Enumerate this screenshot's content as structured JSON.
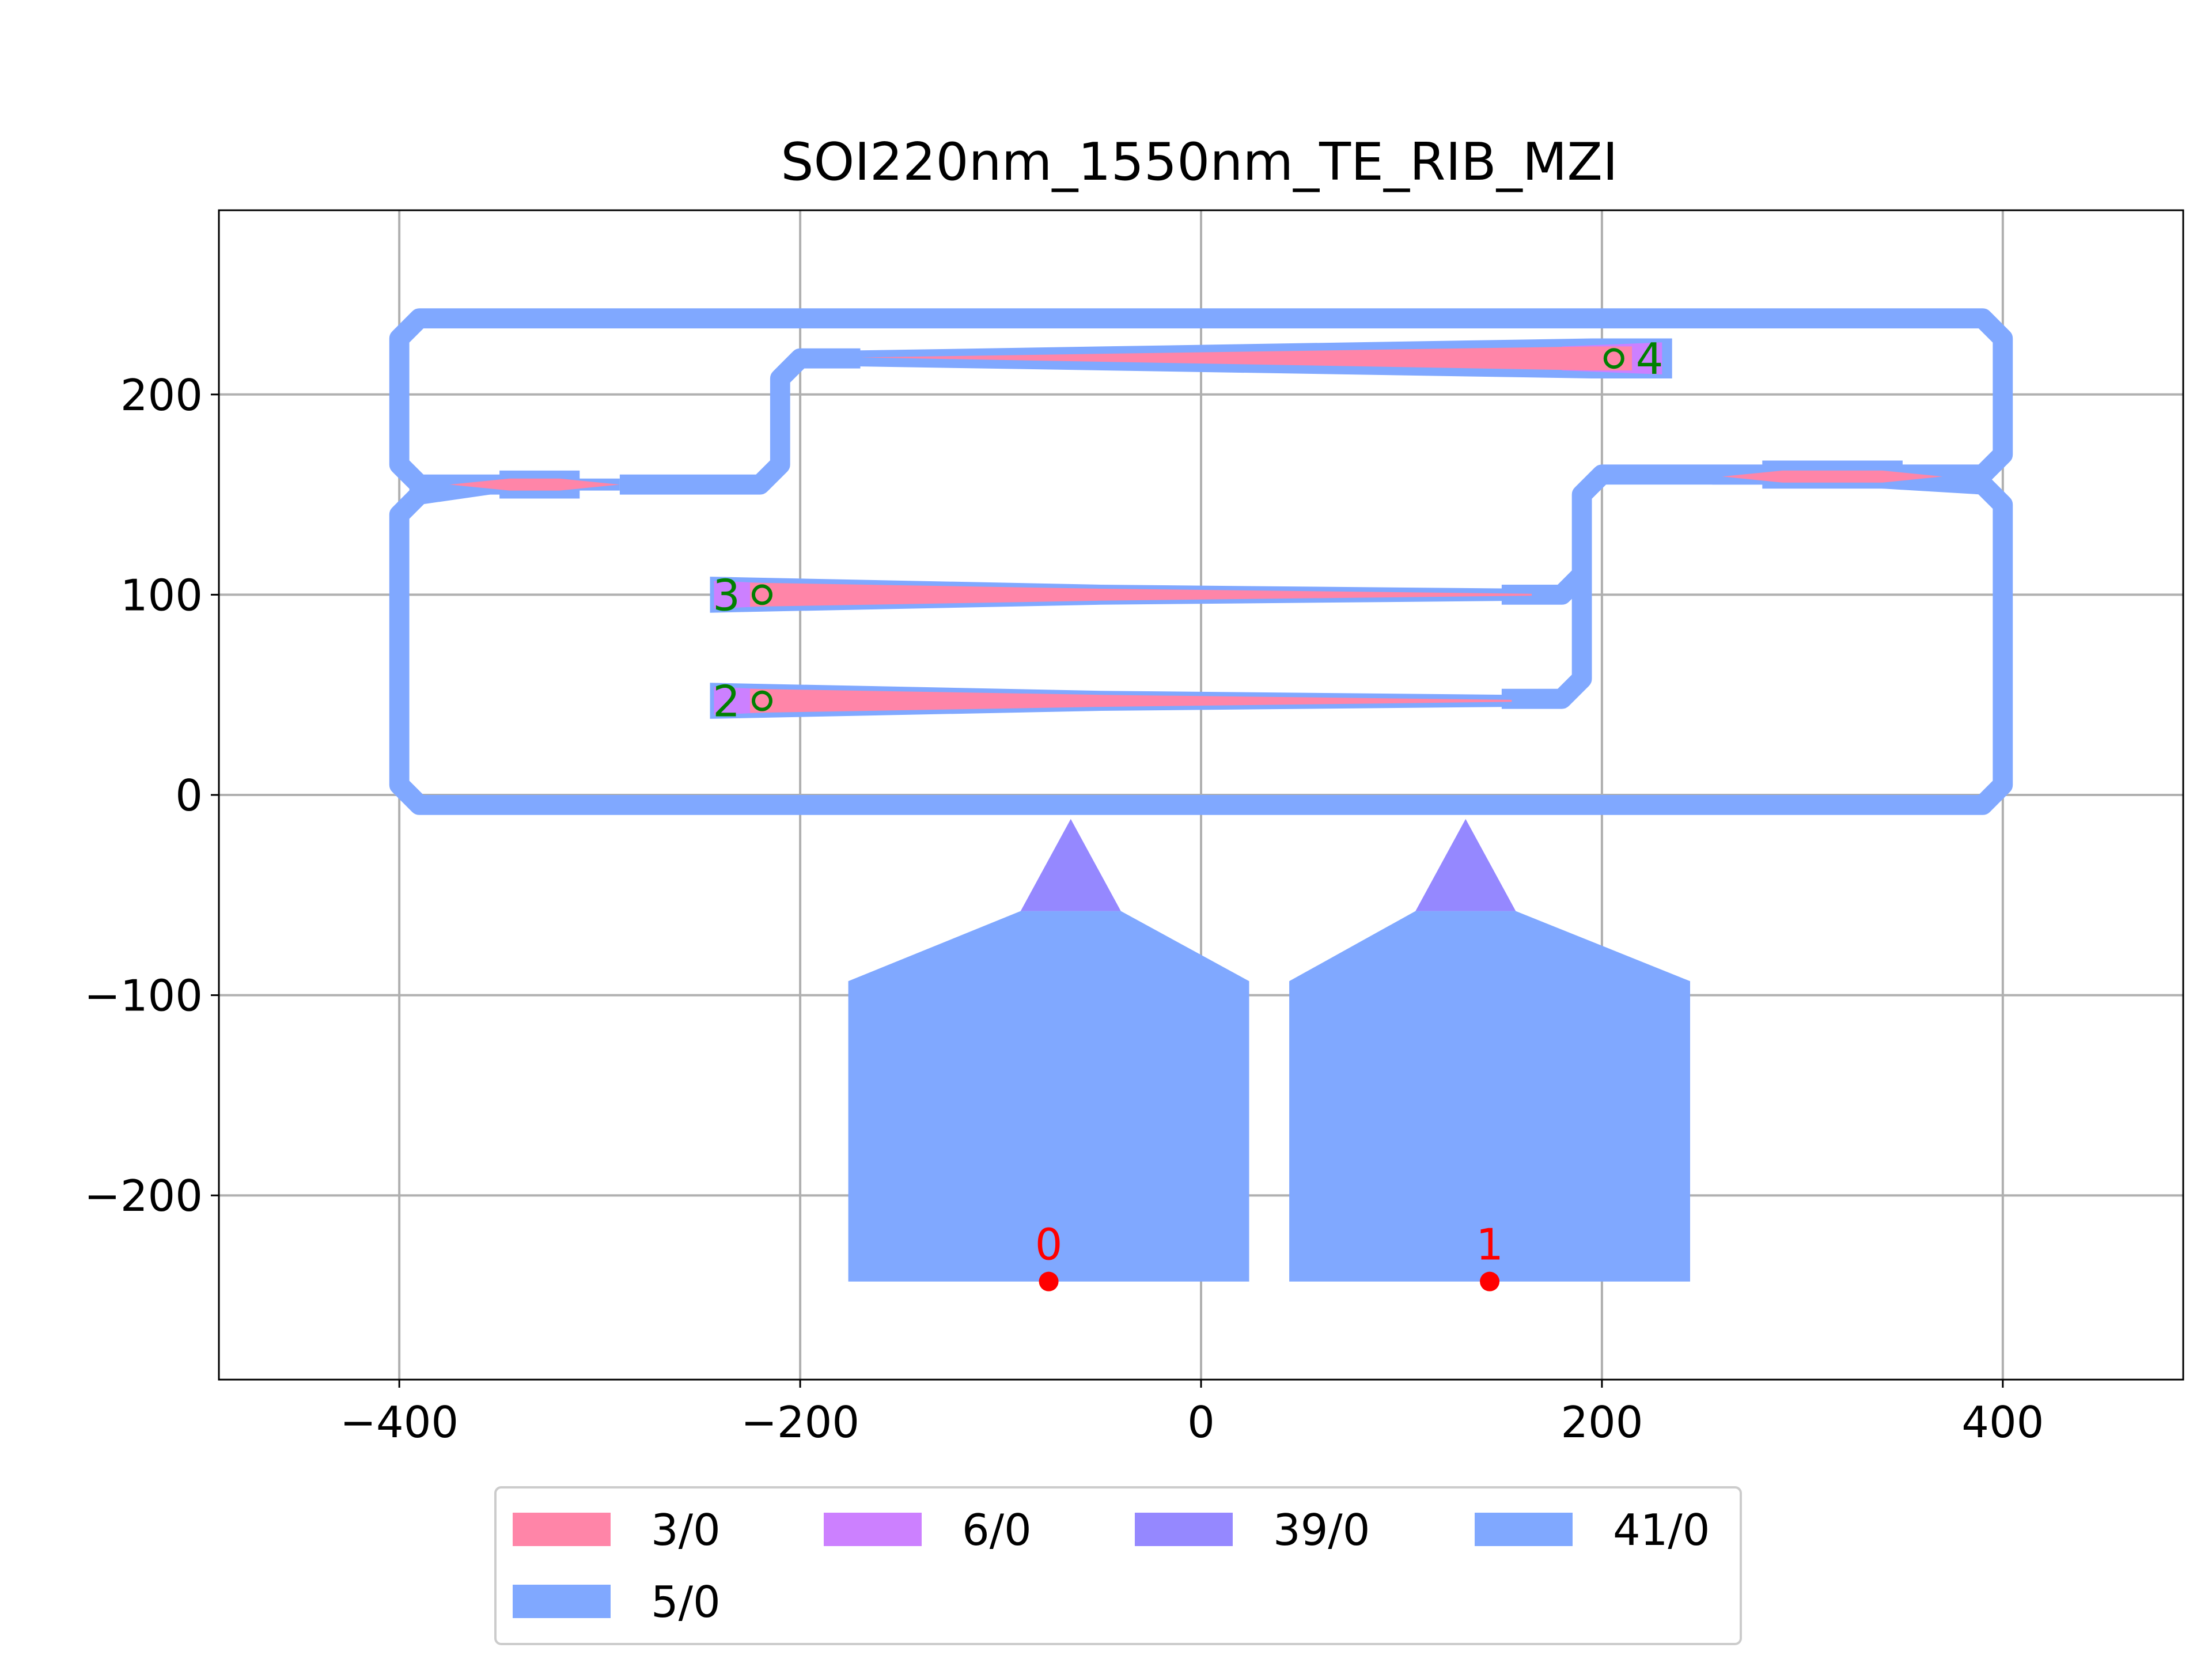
{
  "title": "SOI220nm_1550nm_TE_RIB_MZI",
  "colors": {
    "layer_3_0": "#ff85a8",
    "layer_6_0": "#cc80ff",
    "layer_39_0": "#9588ff",
    "layer_41_0": "#80a8ff",
    "layer_5_0": "#80a8ff",
    "grid": "#b0b0b0",
    "port_electrical": "#ff0000",
    "port_optical": "#008000"
  },
  "chart_data": {
    "type": "layout",
    "xlim": [
      -490,
      490
    ],
    "ylim": [
      -292,
      292
    ],
    "grid": true,
    "xticks": [
      -400,
      -200,
      0,
      200,
      400
    ],
    "yticks": [
      -200,
      -100,
      0,
      100,
      200
    ],
    "xtick_labels": [
      "−400",
      "−200",
      "0",
      "200",
      "400"
    ],
    "ytick_labels": [
      "−200",
      "−100",
      "0",
      "100",
      "200"
    ],
    "legend": {
      "placement": "below",
      "entries": [
        {
          "label": "3/0",
          "color": "#ff85a8"
        },
        {
          "label": "6/0",
          "color": "#cc80ff"
        },
        {
          "label": "39/0",
          "color": "#9588ff"
        },
        {
          "label": "41/0",
          "color": "#80a8ff"
        },
        {
          "label": "5/0",
          "color": "#80a8ff"
        }
      ]
    },
    "ports": [
      {
        "label": "0",
        "x": -76,
        "y": -243,
        "kind": "electrical",
        "marker": "filled"
      },
      {
        "label": "1",
        "x": 144,
        "y": -243,
        "kind": "electrical",
        "marker": "filled"
      },
      {
        "label": "2",
        "x": -219,
        "y": 47,
        "kind": "optical",
        "marker": "open"
      },
      {
        "label": "3",
        "x": -219,
        "y": 100,
        "kind": "optical",
        "marker": "open"
      },
      {
        "label": "4",
        "x": 206,
        "y": 218,
        "kind": "optical",
        "marker": "open"
      }
    ],
    "cladding_paths": [
      {
        "layer": "5/0",
        "width": 10,
        "points": [
          [
            -330,
            155
          ],
          [
            -390,
            155
          ],
          [
            -400,
            165
          ],
          [
            -400,
            228
          ],
          [
            -390,
            238
          ],
          [
            390,
            238
          ],
          [
            400,
            228
          ],
          [
            400,
            170
          ],
          [
            390,
            160
          ],
          [
            340,
            160
          ]
        ]
      },
      {
        "layer": "5/0",
        "width": 10,
        "points": [
          [
            -355,
            155
          ],
          [
            -390,
            150
          ],
          [
            -400,
            140
          ],
          [
            -400,
            5
          ],
          [
            -390,
            -5
          ],
          [
            390,
            -5
          ],
          [
            400,
            5
          ],
          [
            400,
            145
          ],
          [
            390,
            155
          ],
          [
            340,
            158
          ]
        ]
      },
      {
        "layer": "5/0",
        "width": 10,
        "points": [
          [
            -290,
            155
          ],
          [
            -220,
            155
          ],
          [
            -210,
            165
          ],
          [
            -210,
            208
          ],
          [
            -200,
            218
          ],
          [
            -170,
            218
          ]
        ]
      },
      {
        "layer": "5/0",
        "width": 10,
        "points": [
          [
            300,
            160
          ],
          [
            200,
            160
          ],
          [
            190,
            150
          ],
          [
            190,
            110
          ],
          [
            180,
            100
          ],
          [
            150,
            100
          ]
        ]
      },
      {
        "layer": "5/0",
        "width": 10,
        "points": [
          [
            190,
            112
          ],
          [
            190,
            58
          ],
          [
            180,
            48
          ],
          [
            150,
            48
          ]
        ]
      }
    ],
    "cladding_polygons": [
      {
        "layer": "5/0",
        "points": [
          [
            -245,
            109
          ],
          [
            -245,
            91
          ],
          [
            -50,
            95
          ],
          [
            165,
            97
          ],
          [
            165,
            103
          ],
          [
            -50,
            105
          ]
        ]
      },
      {
        "layer": "5/0",
        "points": [
          [
            -245,
            56
          ],
          [
            -245,
            38
          ],
          [
            -50,
            42
          ],
          [
            155,
            44
          ],
          [
            155,
            50
          ],
          [
            -50,
            52
          ]
        ]
      },
      {
        "layer": "5/0",
        "points": [
          [
            -170,
            222
          ],
          [
            -170,
            214
          ],
          [
            195,
            208
          ],
          [
            235,
            208
          ],
          [
            235,
            228
          ],
          [
            195,
            228
          ]
        ]
      },
      {
        "layer": "5/0",
        "points": [
          [
            -350,
            162
          ],
          [
            -310,
            162
          ],
          [
            -310,
            148
          ],
          [
            -350,
            148
          ]
        ]
      },
      {
        "layer": "5/0",
        "points": [
          [
            -395,
            158
          ],
          [
            -290,
            158
          ],
          [
            -290,
            152
          ],
          [
            -395,
            152
          ]
        ]
      },
      {
        "layer": "5/0",
        "points": [
          [
            280,
            167
          ],
          [
            350,
            167
          ],
          [
            350,
            153
          ],
          [
            280,
            153
          ]
        ]
      },
      {
        "layer": "5/0",
        "points": [
          [
            255,
            163
          ],
          [
            390,
            163
          ],
          [
            390,
            155
          ],
          [
            255,
            155
          ]
        ]
      }
    ],
    "core_polygons": [
      {
        "layer": "3/0",
        "points": [
          [
            -225,
            106
          ],
          [
            -225,
            94
          ],
          [
            -50,
            97
          ],
          [
            165,
            99.5
          ],
          [
            165,
            100.5
          ],
          [
            -50,
            103
          ]
        ]
      },
      {
        "layer": "3/0",
        "points": [
          [
            -225,
            53
          ],
          [
            -225,
            41
          ],
          [
            -50,
            44
          ],
          [
            155,
            46.5
          ],
          [
            155,
            47.5
          ],
          [
            -50,
            50
          ]
        ]
      },
      {
        "layer": "3/0",
        "points": [
          [
            -170,
            218.5
          ],
          [
            195,
            212
          ],
          [
            215,
            212
          ],
          [
            215,
            224
          ],
          [
            195,
            224
          ]
        ]
      },
      {
        "layer": "3/0",
        "points": [
          [
            -375,
            155
          ],
          [
            -345,
            158
          ],
          [
            -320,
            158
          ],
          [
            -290,
            155
          ],
          [
            -320,
            152
          ],
          [
            -345,
            152
          ]
        ]
      },
      {
        "layer": "3/0",
        "points": [
          [
            260,
            159
          ],
          [
            290,
            162
          ],
          [
            340,
            162
          ],
          [
            370,
            159
          ],
          [
            340,
            156
          ],
          [
            290,
            156
          ]
        ]
      }
    ],
    "slab_polygons": [
      {
        "layer": "6/0",
        "points": [
          [
            -243,
            107
          ],
          [
            -243,
            93
          ],
          [
            -200,
            95
          ],
          [
            -200,
            105
          ]
        ]
      },
      {
        "layer": "6/0",
        "points": [
          [
            -243,
            54
          ],
          [
            -243,
            40
          ],
          [
            -200,
            42
          ],
          [
            -200,
            52
          ]
        ]
      },
      {
        "layer": "6/0",
        "points": [
          [
            180,
            224
          ],
          [
            230,
            226
          ],
          [
            230,
            210
          ],
          [
            180,
            212
          ]
        ]
      }
    ],
    "heater_contacts": [
      {
        "layer": "39/0",
        "points": [
          [
            -65,
            -12
          ],
          [
            -40,
            -58
          ],
          [
            -90,
            -58
          ]
        ]
      },
      {
        "layer": "39/0",
        "points": [
          [
            132,
            -12
          ],
          [
            157,
            -58
          ],
          [
            107,
            -58
          ]
        ]
      }
    ],
    "metal_pads": [
      {
        "layer": "41/0",
        "points": [
          [
            -176,
            -243
          ],
          [
            24,
            -243
          ],
          [
            24,
            -93
          ],
          [
            -40,
            -58
          ],
          [
            -90,
            -58
          ],
          [
            -176,
            -93
          ]
        ]
      },
      {
        "layer": "41/0",
        "points": [
          [
            44,
            -243
          ],
          [
            244,
            -243
          ],
          [
            244,
            -93
          ],
          [
            157,
            -58
          ],
          [
            107,
            -58
          ],
          [
            44,
            -93
          ]
        ]
      }
    ]
  }
}
